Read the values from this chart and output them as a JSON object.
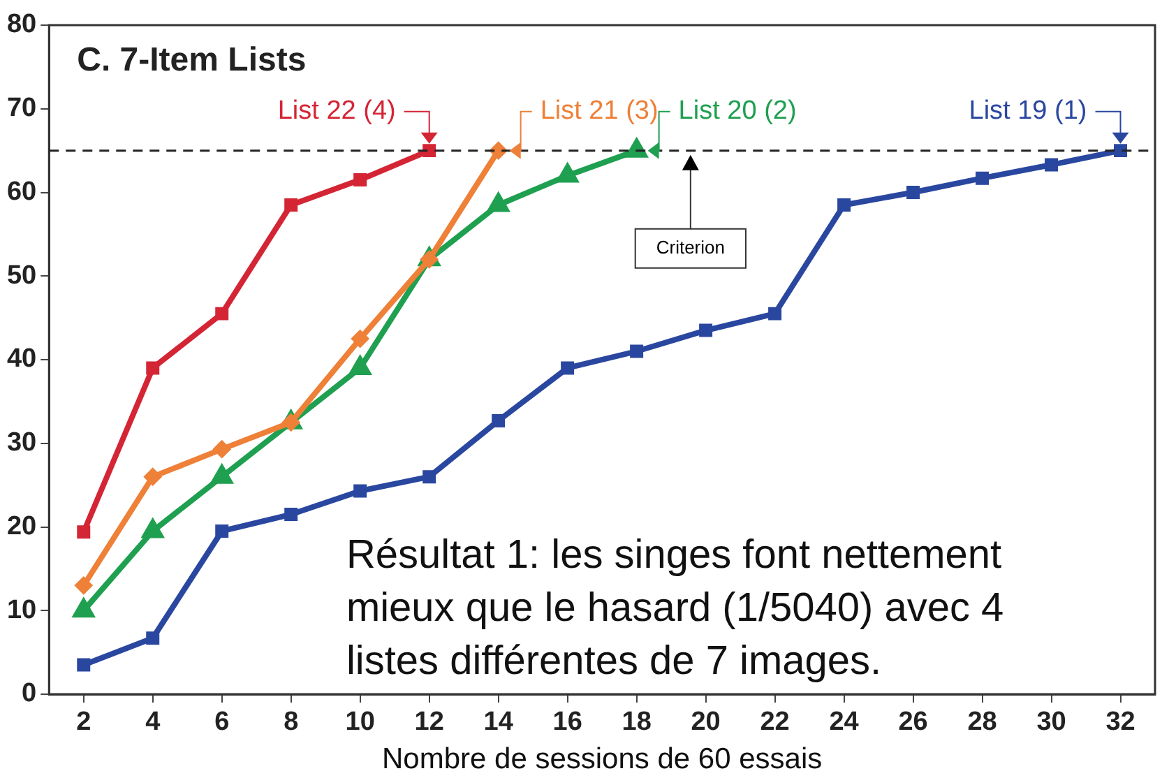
{
  "chart_data": {
    "type": "line",
    "title": "C. 7-Item Lists",
    "xlabel": "Nombre de sessions de 60 essais",
    "xlim": [
      1,
      33
    ],
    "xticks": [
      2,
      4,
      6,
      8,
      10,
      12,
      14,
      16,
      18,
      20,
      22,
      24,
      26,
      28,
      30,
      32
    ],
    "ylim": [
      0,
      80
    ],
    "yticks": [
      0,
      10,
      20,
      30,
      40,
      50,
      60,
      70,
      80
    ],
    "grid": false,
    "legend": false,
    "line_style": "solid",
    "x": [
      2,
      4,
      6,
      8,
      10,
      12,
      14,
      16,
      18,
      20,
      22,
      24,
      26,
      28,
      30,
      32
    ],
    "series": [
      {
        "color": "#d42535",
        "marker": "square",
        "values": [
          19.4,
          39,
          45.5,
          58.5,
          61.5,
          65,
          null,
          null,
          null,
          null,
          null,
          null,
          null,
          null,
          null,
          null
        ]
      },
      {
        "color": "#ee8038",
        "marker": "diamond",
        "values": [
          13,
          26,
          29.3,
          32.5,
          42.5,
          52,
          65,
          null,
          null,
          null,
          null,
          null,
          null,
          null,
          null,
          null
        ]
      },
      {
        "color": "#1fa050",
        "marker": "triangle",
        "values": [
          10,
          19.5,
          26,
          32.5,
          39,
          52,
          58.5,
          62,
          65,
          null,
          null,
          null,
          null,
          null,
          null,
          null
        ]
      },
      {
        "color": "#2a47a0",
        "marker": "square",
        "values": [
          3.5,
          6.7,
          19.5,
          21.5,
          24.3,
          26,
          32.7,
          39,
          41,
          43.5,
          45.5,
          58.5,
          60,
          61.7,
          63.3,
          65
        ]
      }
    ],
    "ref_lines": [
      {
        "axis": "y",
        "value": 65,
        "label": "Criterion",
        "line_style": "dashed",
        "color": "#222222"
      }
    ],
    "annotations": [
      {
        "text": "List 22 (4)",
        "x": 12,
        "y": 65
      },
      {
        "text": "List 21 (3)",
        "x": 14,
        "y": 65
      },
      {
        "text": "List 20 (2)",
        "x": 18,
        "y": 65
      },
      {
        "text": "List 19 (1)",
        "x": 32,
        "y": 65
      },
      "Résultat 1: les singes font nettement mieux que le hasard (1/5040) avec 4 listes différentes de 7 images."
    ]
  }
}
